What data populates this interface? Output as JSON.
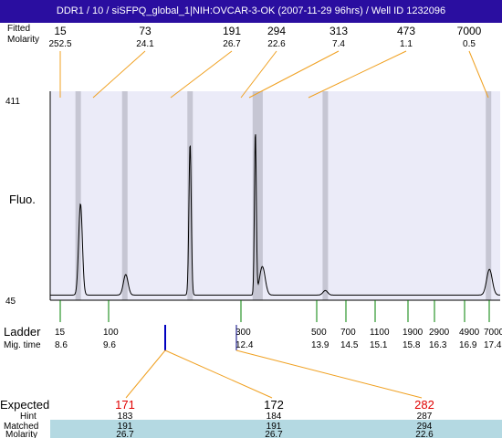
{
  "title": "DDR1 / 10 / siSFPQ_global_1|NIH:OVCAR-3-OK (2007-11-29 96hrs) / Well ID 1232096",
  "top_row": {
    "label_size": "Fitted",
    "label_molarity": "Molarity",
    "sizes": [
      "15",
      "73",
      "191",
      "294",
      "313",
      "473",
      "7000"
    ],
    "molarities": [
      "252.5",
      "24.1",
      "26.7",
      "22.6",
      "7.4",
      "1.1",
      "0.5"
    ]
  },
  "ladder_row": {
    "label_ladder": "Ladder",
    "label_migtime": "Mig. time",
    "sizes": [
      "15",
      "100",
      "300",
      "500",
      "700",
      "1100",
      "1900",
      "2900",
      "4900",
      "7000"
    ],
    "migtimes": [
      "8.6",
      "9.6",
      "12.4",
      "13.9",
      "14.5",
      "15.1",
      "15.8",
      "16.3",
      "16.9",
      "17.4"
    ]
  },
  "bottom_table": {
    "label_expected": "Expected",
    "label_hint": "Hint",
    "label_matched": "Matched",
    "label_molarity": "Molarity",
    "columns": [
      {
        "expected": "171",
        "hint": "183",
        "matched": "191",
        "molarity": "26.7"
      },
      {
        "expected": "172",
        "hint": "184",
        "matched": "191",
        "molarity": "26.7"
      },
      {
        "expected": "282",
        "hint": "287",
        "matched": "294",
        "molarity": "22.6"
      }
    ]
  },
  "chart_data": {
    "type": "line",
    "ylabel": "Fluo.",
    "ylim": [
      45,
      411
    ],
    "y_ticks": [
      "411",
      "45"
    ],
    "x_unit": "migration time",
    "xlim": [
      8.0,
      17.65
    ],
    "baseline": 54,
    "peaks": [
      {
        "x": 8.65,
        "height": 160,
        "width": 0.04
      },
      {
        "x": 9.62,
        "height": 36,
        "width": 0.05
      },
      {
        "x": 11.0,
        "height": 265,
        "width": 0.025
      },
      {
        "x": 12.4,
        "height": 285,
        "width": 0.02
      },
      {
        "x": 12.55,
        "height": 50,
        "width": 0.06
      },
      {
        "x": 13.9,
        "height": 8,
        "width": 0.05
      },
      {
        "x": 17.42,
        "height": 45,
        "width": 0.06
      }
    ],
    "ladder_band_times": [
      8.6,
      9.6,
      11.0,
      12.4,
      12.5,
      13.9,
      17.4
    ],
    "colors": {
      "title_bg": "#2a0ea0",
      "plot_bg": "#ebebf8",
      "band": "#c6c6d3",
      "connector": "#f0a020",
      "ladder_tick": "#008000",
      "marker": "#0000c0",
      "expected_red": "#e00000",
      "matched_bg": "#b4d9e2"
    }
  }
}
